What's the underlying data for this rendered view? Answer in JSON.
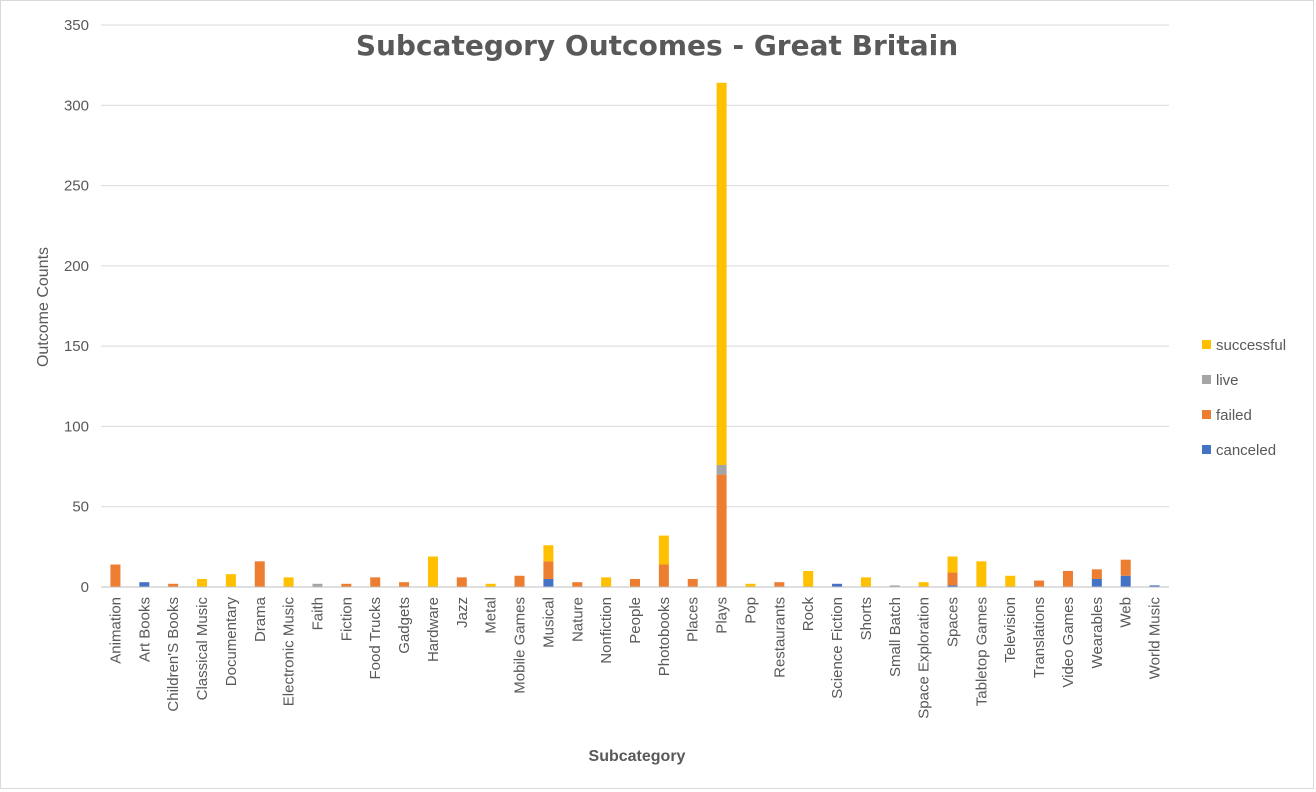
{
  "chart_data": {
    "type": "bar",
    "stacked": true,
    "title": "Subcategory Outcomes - Great Britain",
    "xlabel": "Subcategory",
    "ylabel": "Outcome Counts",
    "ylim": [
      0,
      350
    ],
    "yticks": [
      0,
      50,
      100,
      150,
      200,
      250,
      300,
      350
    ],
    "grid": true,
    "legend_position": "right",
    "categories": [
      "Animation",
      "Art Books",
      "Children'S Books",
      "Classical Music",
      "Documentary",
      "Drama",
      "Electronic Music",
      "Faith",
      "Fiction",
      "Food Trucks",
      "Gadgets",
      "Hardware",
      "Jazz",
      "Metal",
      "Mobile Games",
      "Musical",
      "Nature",
      "Nonfiction",
      "People",
      "Photobooks",
      "Places",
      "Plays",
      "Pop",
      "Restaurants",
      "Rock",
      "Science Fiction",
      "Shorts",
      "Small Batch",
      "Space Exploration",
      "Spaces",
      "Tabletop Games",
      "Television",
      "Translations",
      "Video Games",
      "Wearables",
      "Web",
      "World Music"
    ],
    "series": [
      {
        "name": "canceled",
        "color": "#4472C4",
        "values": [
          0,
          3,
          0,
          0,
          0,
          0,
          0,
          0,
          0,
          0,
          0,
          0,
          0,
          0,
          0,
          5,
          0,
          0,
          0,
          0,
          0,
          0,
          0,
          0,
          0,
          2,
          0,
          0,
          0,
          1,
          0,
          0,
          0,
          0,
          5,
          7,
          1
        ]
      },
      {
        "name": "failed",
        "color": "#ED7D31",
        "values": [
          14,
          0,
          2,
          0,
          0,
          16,
          0,
          0,
          2,
          6,
          3,
          0,
          6,
          0,
          7,
          11,
          3,
          0,
          5,
          14,
          5,
          70,
          0,
          3,
          0,
          0,
          0,
          0,
          0,
          8,
          0,
          0,
          4,
          10,
          6,
          10,
          0
        ]
      },
      {
        "name": "live",
        "color": "#A5A5A5",
        "values": [
          0,
          0,
          0,
          0,
          0,
          0,
          0,
          2,
          0,
          0,
          0,
          0,
          0,
          0,
          0,
          0,
          0,
          0,
          0,
          0,
          0,
          6,
          0,
          0,
          0,
          0,
          0,
          1,
          0,
          0,
          0,
          0,
          0,
          0,
          0,
          0,
          0
        ]
      },
      {
        "name": "successful",
        "color": "#FFC000",
        "values": [
          0,
          0,
          0,
          5,
          8,
          0,
          6,
          0,
          0,
          0,
          0,
          19,
          0,
          2,
          0,
          10,
          0,
          6,
          0,
          18,
          0,
          238,
          2,
          0,
          10,
          0,
          6,
          0,
          3,
          10,
          16,
          7,
          0,
          0,
          0,
          0,
          0
        ]
      }
    ],
    "legend_order": [
      "successful",
      "live",
      "failed",
      "canceled"
    ],
    "colors": {
      "grid": "#D9D9D9",
      "axis": "#BFBFBF",
      "text": "#595959"
    }
  }
}
